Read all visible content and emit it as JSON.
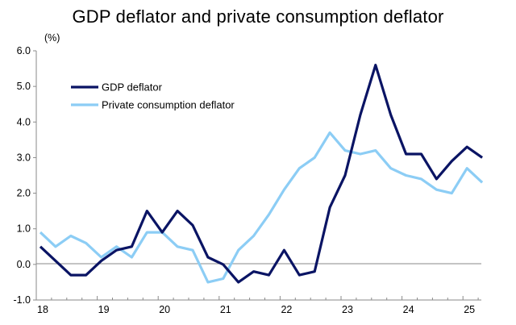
{
  "chart_data": {
    "type": "line",
    "title": "GDP deflator and private consumption deflator",
    "ylabel": "(%)",
    "xlabel": "",
    "ylim": [
      -1.0,
      6.0
    ],
    "yticks": [
      "6.0",
      "5.0",
      "4.0",
      "3.0",
      "2.0",
      "1.0",
      "0.0",
      "-1.0"
    ],
    "ytick_values": [
      6,
      5,
      4,
      3,
      2,
      1,
      0,
      -1
    ],
    "x_tick_labels": [
      "18",
      "19",
      "20",
      "21",
      "22",
      "23",
      "24",
      "25"
    ],
    "periods": [
      "2018Q1",
      "2018Q2",
      "2018Q3",
      "2018Q4",
      "2019Q1",
      "2019Q2",
      "2019Q3",
      "2019Q4",
      "2020Q1",
      "2020Q2",
      "2020Q3",
      "2020Q4",
      "2021Q1",
      "2021Q2",
      "2021Q3",
      "2021Q4",
      "2022Q1",
      "2022Q2",
      "2022Q3",
      "2022Q4",
      "2023Q1",
      "2023Q2",
      "2023Q3",
      "2023Q4",
      "2024Q1",
      "2024Q2",
      "2024Q3",
      "2024Q4",
      "2025Q1",
      "2025Q2"
    ],
    "grid": false,
    "legend_position": "top-left",
    "series": [
      {
        "name": "GDP deflator",
        "color": "#0a1464",
        "values": [
          0.5,
          0.1,
          -0.3,
          -0.3,
          0.1,
          0.4,
          0.5,
          1.5,
          0.9,
          1.5,
          1.1,
          0.2,
          0.0,
          -0.5,
          -0.2,
          -0.3,
          0.4,
          -0.3,
          -0.2,
          1.6,
          2.5,
          4.2,
          5.6,
          4.2,
          3.1,
          3.1,
          2.4,
          2.9,
          3.3,
          3.0
        ]
      },
      {
        "name": "Private consumption deflator",
        "color": "#8ccdf5",
        "values": [
          0.9,
          0.5,
          0.8,
          0.6,
          0.2,
          0.5,
          0.2,
          0.9,
          0.9,
          0.5,
          0.4,
          -0.5,
          -0.4,
          0.4,
          0.8,
          1.4,
          2.1,
          2.7,
          3.0,
          3.7,
          3.2,
          3.1,
          3.2,
          2.7,
          2.5,
          2.4,
          2.1,
          2.0,
          2.7,
          2.3
        ]
      }
    ]
  }
}
